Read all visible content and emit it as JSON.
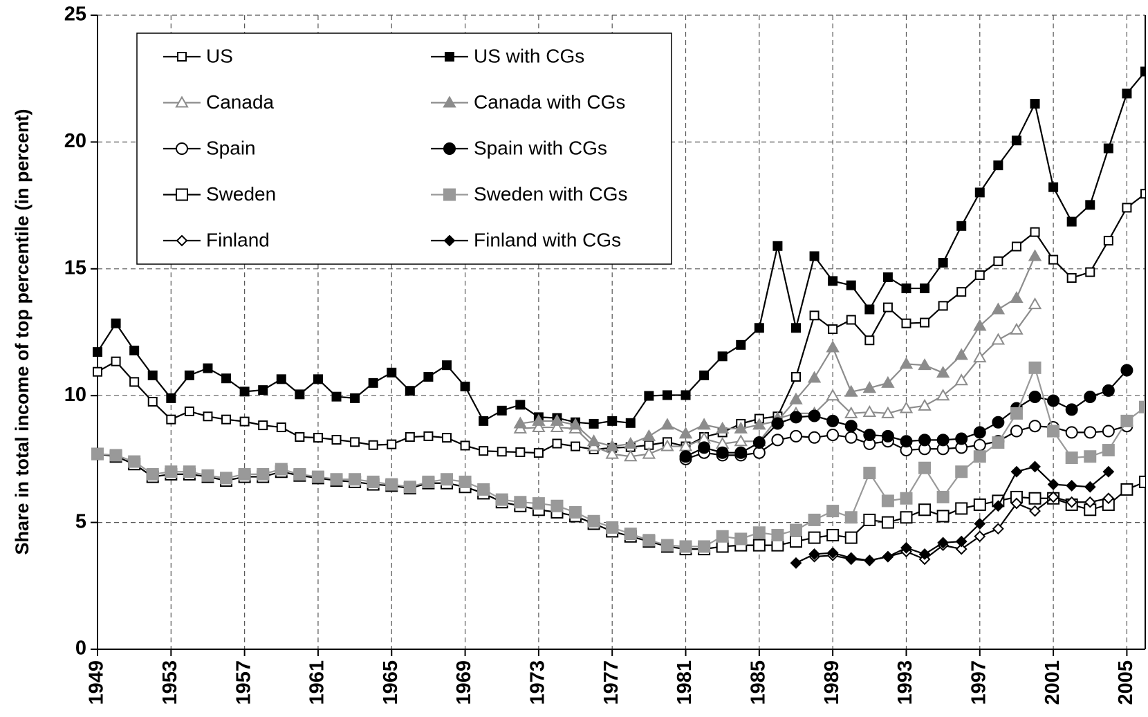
{
  "chart_data": {
    "type": "line",
    "y_label": "Share in total income of top percentile (in percent)",
    "x": [
      1949,
      1950,
      1951,
      1952,
      1953,
      1954,
      1955,
      1956,
      1957,
      1958,
      1959,
      1960,
      1961,
      1962,
      1963,
      1964,
      1965,
      1966,
      1967,
      1968,
      1969,
      1970,
      1971,
      1972,
      1973,
      1974,
      1975,
      1976,
      1977,
      1978,
      1979,
      1980,
      1981,
      1982,
      1983,
      1984,
      1985,
      1986,
      1987,
      1988,
      1989,
      1990,
      1991,
      1992,
      1993,
      1994,
      1995,
      1996,
      1997,
      1998,
      1999,
      2000,
      2001,
      2002,
      2003,
      2004,
      2005,
      2006
    ],
    "xlim": [
      1949,
      2006
    ],
    "xticks": [
      1949,
      1953,
      1957,
      1961,
      1965,
      1969,
      1973,
      1977,
      1981,
      1985,
      1989,
      1993,
      1997,
      2001,
      2005
    ],
    "ylim": [
      0,
      25
    ],
    "yticks": [
      0,
      5,
      10,
      15,
      20,
      25
    ],
    "grid": true,
    "legend": "upper left",
    "series": [
      {
        "name": "US",
        "color": "#000000",
        "fill": "#ffffff",
        "marker": "square",
        "values": [
          10.94,
          11.35,
          10.54,
          9.76,
          9.06,
          9.38,
          9.18,
          9.06,
          8.98,
          8.83,
          8.75,
          8.37,
          8.34,
          8.26,
          8.17,
          8.05,
          8.08,
          8.37,
          8.4,
          8.34,
          8.03,
          7.82,
          7.79,
          7.77,
          7.74,
          8.11,
          8.0,
          7.88,
          7.94,
          7.97,
          8.05,
          8.17,
          8.0,
          8.37,
          8.55,
          8.89,
          9.09,
          9.18,
          10.74,
          13.16,
          12.62,
          12.99,
          12.18,
          13.48,
          12.85,
          12.88,
          13.54,
          14.09,
          14.75,
          15.3,
          15.88,
          16.45,
          15.36,
          14.64,
          14.87,
          16.11,
          17.41,
          17.96
        ]
      },
      {
        "name": "US with CGs",
        "color": "#000000",
        "fill": "#000000",
        "marker": "square",
        "values": [
          11.72,
          12.85,
          11.78,
          10.8,
          9.9,
          10.8,
          11.08,
          10.68,
          10.16,
          10.22,
          10.65,
          10.05,
          10.65,
          9.96,
          9.9,
          10.5,
          10.91,
          10.19,
          10.74,
          11.2,
          10.36,
          9.0,
          9.41,
          9.64,
          9.15,
          9.12,
          8.95,
          8.89,
          9.0,
          8.92,
          9.99,
          10.02,
          10.02,
          10.8,
          11.55,
          12.0,
          12.67,
          15.9,
          12.67,
          15.5,
          14.52,
          14.35,
          13.4,
          14.67,
          14.23,
          14.23,
          15.24,
          16.69,
          18.01,
          19.08,
          20.06,
          21.51,
          18.22,
          16.86,
          17.52,
          19.75,
          21.91,
          22.78
        ]
      },
      {
        "name": "Canada",
        "color": "#8c8c8c",
        "fill": "#ffffff",
        "marker": "triangle",
        "values": [
          null,
          null,
          null,
          null,
          null,
          null,
          null,
          null,
          null,
          null,
          null,
          null,
          null,
          null,
          null,
          null,
          null,
          null,
          null,
          null,
          null,
          null,
          null,
          8.7,
          8.75,
          8.75,
          8.7,
          8.0,
          7.7,
          7.6,
          7.7,
          8.0,
          8.0,
          8.3,
          8.1,
          8.2,
          8.2,
          9.1,
          9.3,
          9.3,
          10.0,
          9.3,
          9.35,
          9.3,
          9.5,
          9.6,
          10.0,
          10.6,
          11.5,
          12.2,
          12.6,
          13.6,
          null,
          null,
          null,
          null,
          null,
          null
        ]
      },
      {
        "name": "Canada with CGs",
        "color": "#8c8c8c",
        "fill": "#8c8c8c",
        "marker": "triangle",
        "values": [
          null,
          null,
          null,
          null,
          null,
          null,
          null,
          null,
          null,
          null,
          null,
          null,
          null,
          null,
          null,
          null,
          null,
          null,
          null,
          null,
          null,
          null,
          null,
          8.9,
          9.0,
          9.0,
          8.85,
          8.2,
          8.0,
          8.1,
          8.4,
          8.85,
          8.5,
          8.85,
          8.7,
          8.7,
          8.85,
          9.0,
          9.85,
          10.7,
          11.9,
          10.15,
          10.3,
          10.5,
          11.25,
          11.2,
          10.9,
          11.6,
          12.75,
          13.4,
          13.85,
          15.5,
          null,
          null,
          null,
          null,
          null,
          null
        ]
      },
      {
        "name": "Spain",
        "color": "#000000",
        "fill": "#ffffff",
        "marker": "circle",
        "values": [
          null,
          null,
          null,
          null,
          null,
          null,
          null,
          null,
          null,
          null,
          null,
          null,
          null,
          null,
          null,
          null,
          null,
          null,
          null,
          null,
          null,
          null,
          null,
          null,
          null,
          null,
          null,
          null,
          null,
          null,
          null,
          null,
          7.5,
          7.75,
          7.65,
          7.65,
          7.75,
          8.25,
          8.4,
          8.35,
          8.45,
          8.35,
          8.1,
          8.2,
          7.85,
          7.9,
          7.9,
          7.95,
          8.05,
          8.2,
          8.6,
          8.8,
          8.75,
          8.55,
          8.55,
          8.6,
          8.8,
          null
        ]
      },
      {
        "name": "Spain with CGs",
        "color": "#000000",
        "fill": "#000000",
        "marker": "circle",
        "values": [
          null,
          null,
          null,
          null,
          null,
          null,
          null,
          null,
          null,
          null,
          null,
          null,
          null,
          null,
          null,
          null,
          null,
          null,
          null,
          null,
          null,
          null,
          null,
          null,
          null,
          null,
          null,
          null,
          null,
          null,
          null,
          null,
          7.6,
          7.95,
          7.75,
          7.75,
          8.15,
          8.9,
          9.15,
          9.2,
          9.0,
          8.8,
          8.45,
          8.4,
          8.2,
          8.25,
          8.25,
          8.3,
          8.55,
          8.95,
          9.5,
          9.95,
          9.8,
          9.45,
          9.95,
          10.2,
          11.0,
          null
        ]
      },
      {
        "name": "Sweden",
        "color": "#000000",
        "fill": "#ffffff",
        "marker": "large-square",
        "values": [
          7.7,
          7.6,
          7.3,
          6.8,
          6.9,
          6.9,
          6.8,
          6.65,
          6.8,
          6.8,
          7.0,
          6.85,
          6.75,
          6.65,
          6.6,
          6.5,
          6.45,
          6.35,
          6.55,
          6.55,
          6.4,
          6.15,
          5.8,
          5.65,
          5.5,
          5.4,
          5.25,
          4.95,
          4.65,
          4.45,
          4.25,
          4.05,
          3.95,
          3.95,
          4.05,
          4.1,
          4.1,
          4.1,
          4.25,
          4.4,
          4.5,
          4.4,
          5.1,
          5.0,
          5.2,
          5.5,
          5.25,
          5.55,
          5.7,
          5.85,
          6.0,
          5.95,
          5.95,
          5.7,
          5.5,
          5.7,
          6.3,
          6.6
        ]
      },
      {
        "name": "Sweden with CGs",
        "color": "#999999",
        "fill": "#999999",
        "marker": "large-square",
        "values": [
          7.7,
          7.65,
          7.4,
          6.9,
          7.0,
          7.0,
          6.85,
          6.75,
          6.9,
          6.9,
          7.1,
          6.9,
          6.8,
          6.7,
          6.7,
          6.6,
          6.5,
          6.4,
          6.6,
          6.7,
          6.6,
          6.3,
          5.9,
          5.8,
          5.75,
          5.65,
          5.4,
          5.05,
          4.8,
          4.55,
          4.3,
          4.1,
          4.05,
          4.05,
          4.45,
          4.35,
          4.6,
          4.5,
          4.7,
          5.1,
          5.45,
          5.2,
          6.95,
          5.85,
          5.95,
          7.15,
          6.0,
          7.0,
          7.6,
          8.15,
          9.3,
          11.1,
          8.6,
          7.55,
          7.6,
          7.85,
          9.0,
          9.55
        ]
      },
      {
        "name": "Finland",
        "color": "#000000",
        "fill": "#ffffff",
        "marker": "diamond",
        "values": [
          null,
          null,
          null,
          null,
          null,
          null,
          null,
          null,
          null,
          null,
          null,
          null,
          null,
          null,
          null,
          null,
          null,
          null,
          null,
          null,
          null,
          null,
          null,
          null,
          null,
          null,
          null,
          null,
          null,
          null,
          null,
          null,
          null,
          null,
          null,
          null,
          null,
          null,
          null,
          3.65,
          3.7,
          3.55,
          3.5,
          3.65,
          3.85,
          3.55,
          4.1,
          3.95,
          4.45,
          4.75,
          5.75,
          5.45,
          6.0,
          5.8,
          5.8,
          5.95,
          null,
          null
        ]
      },
      {
        "name": "Finland with CGs",
        "color": "#000000",
        "fill": "#000000",
        "marker": "diamond",
        "values": [
          null,
          null,
          null,
          null,
          null,
          null,
          null,
          null,
          null,
          null,
          null,
          null,
          null,
          null,
          null,
          null,
          null,
          null,
          null,
          null,
          null,
          null,
          null,
          null,
          null,
          null,
          null,
          null,
          null,
          null,
          null,
          null,
          null,
          null,
          null,
          null,
          null,
          null,
          3.4,
          3.75,
          3.8,
          3.6,
          3.5,
          3.65,
          4.0,
          3.75,
          4.2,
          4.25,
          4.95,
          5.65,
          7.0,
          7.2,
          6.5,
          6.45,
          6.4,
          7.0,
          null,
          null
        ]
      }
    ]
  }
}
